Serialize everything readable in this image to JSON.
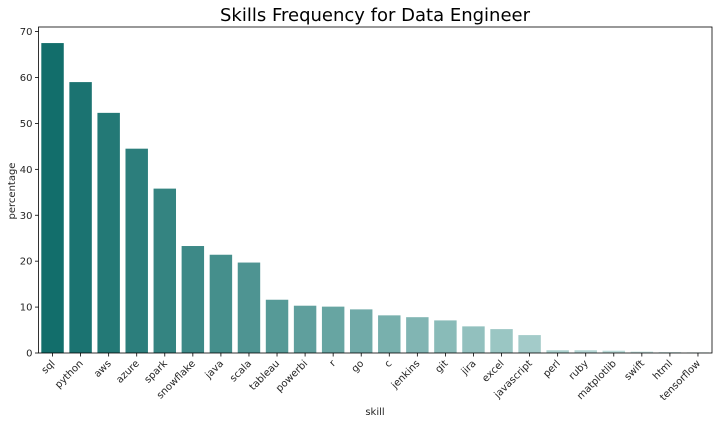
{
  "chart_data": {
    "type": "bar",
    "title": "Skills Frequency for Data Engineer",
    "xlabel": "skill",
    "ylabel": "percentage",
    "ylim": [
      0,
      71
    ],
    "yticks": [
      0,
      10,
      20,
      30,
      40,
      50,
      60,
      70
    ],
    "grid": false,
    "palette": {
      "start": "#126e6b",
      "end": "#d6ecea"
    },
    "categories": [
      "sql",
      "python",
      "aws",
      "azure",
      "spark",
      "snowflake",
      "java",
      "scala",
      "tableau",
      "powerbi",
      "r",
      "go",
      "c",
      "jenkins",
      "git",
      "jira",
      "excel",
      "javascript",
      "perl",
      "ruby",
      "matplotlib",
      "swift",
      "html",
      "tensorflow"
    ],
    "values": [
      67.5,
      59.0,
      52.3,
      44.5,
      35.8,
      23.3,
      21.4,
      19.7,
      11.6,
      10.3,
      10.1,
      9.5,
      8.2,
      7.8,
      7.1,
      5.8,
      5.2,
      3.9,
      0.6,
      0.6,
      0.5,
      0.3,
      0.2,
      0.15
    ]
  }
}
